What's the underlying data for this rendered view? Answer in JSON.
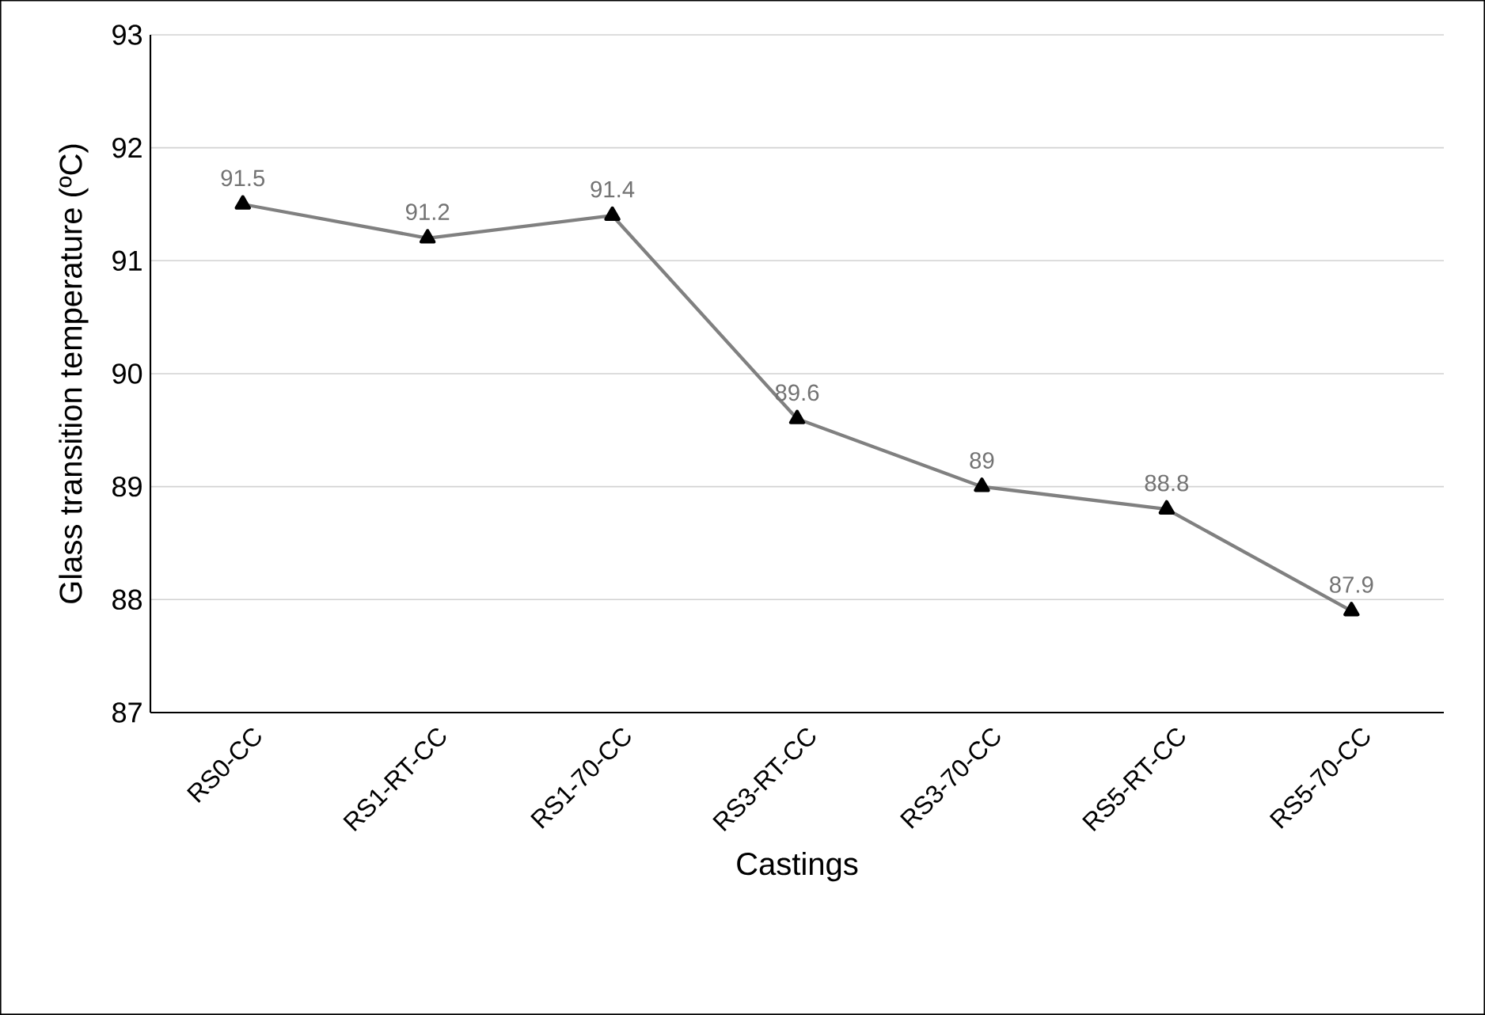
{
  "chart_data": {
    "type": "line",
    "xlabel": "Castings",
    "ylabel": "Glass transition temperature (ºC)",
    "categories": [
      "RS0-CC",
      "RS1-RT-CC",
      "RS1-70-CC",
      "RS3-RT-CC",
      "RS3-70-CC",
      "RS5-RT-CC",
      "RS5-70-CC"
    ],
    "values": [
      91.5,
      91.2,
      91.4,
      89.6,
      89,
      88.8,
      87.9
    ],
    "color": "#808080",
    "marker": "triangle",
    "line_style": "solid",
    "ylim": [
      87,
      93
    ],
    "yticks": [
      87,
      88,
      89,
      90,
      91,
      92,
      93
    ],
    "grid": "y",
    "data_labels": true
  }
}
